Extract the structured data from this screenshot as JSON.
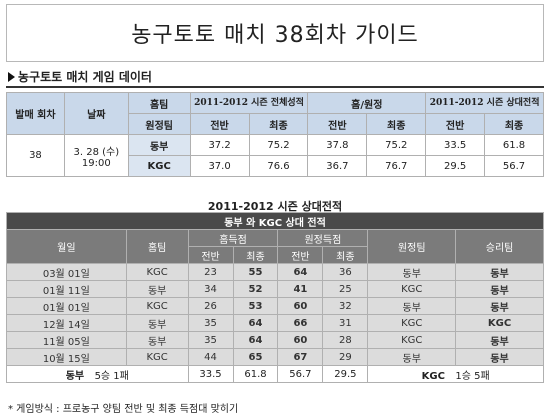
{
  "title": "농구토토 매치 38회차 가이드",
  "section_label": "농구토토 매치 게임 데이터",
  "game_table": {
    "h_round": "발매 회차",
    "h_date": "날짜",
    "h_home": "홈팀",
    "h_away": "원정팀",
    "h_season": "2011-2012 시즌 전체성적",
    "h_homeaway": "홈/원정",
    "h_h2h": "2011-2012 시즌 상대전적",
    "h_first": "전반",
    "h_final": "최종",
    "round": "38",
    "date": "3. 28 (수)",
    "time": "19:00",
    "rows": [
      {
        "team": "동부",
        "s1": "37.2",
        "s2": "75.2",
        "ha1": "37.8",
        "ha2": "75.2",
        "hh1": "33.5",
        "hh2": "61.8"
      },
      {
        "team": "KGC",
        "s1": "37.0",
        "s2": "76.6",
        "ha1": "36.7",
        "ha2": "76.7",
        "hh1": "29.5",
        "hh2": "56.7"
      }
    ]
  },
  "h2h": {
    "subtitle": "2011-2012 시즌 상대전적",
    "banner": "동부 와 KGC 상대 전적",
    "h_date": "월일",
    "h_home": "홈팀",
    "h_home_score": "홈득점",
    "h_away_score": "원정득점",
    "h_away": "원정팀",
    "h_winner": "승리팀",
    "h_first": "전반",
    "h_final": "최종",
    "rows": [
      {
        "date": "03월 01일",
        "home": "KGC",
        "hf": "23",
        "hfin": "55",
        "af": "64",
        "afin": "36",
        "away": "동부",
        "winner": "동부"
      },
      {
        "date": "01월 11일",
        "home": "동부",
        "hf": "34",
        "hfin": "52",
        "af": "41",
        "afin": "25",
        "away": "KGC",
        "winner": "동부"
      },
      {
        "date": "01월 01일",
        "home": "KGC",
        "hf": "26",
        "hfin": "53",
        "af": "60",
        "afin": "32",
        "away": "동부",
        "winner": "동부"
      },
      {
        "date": "12월 14일",
        "home": "동부",
        "hf": "35",
        "hfin": "64",
        "af": "66",
        "afin": "31",
        "away": "KGC",
        "winner": "KGC"
      },
      {
        "date": "11월 05일",
        "home": "동부",
        "hf": "35",
        "hfin": "64",
        "af": "60",
        "afin": "28",
        "away": "KGC",
        "winner": "동부"
      },
      {
        "date": "10월 15일",
        "home": "KGC",
        "hf": "44",
        "hfin": "65",
        "af": "67",
        "afin": "29",
        "away": "동부",
        "winner": "동부"
      }
    ],
    "footer": {
      "team_a": "동부",
      "record_a": "5승 1패",
      "avg1": "33.5",
      "avg2": "61.8",
      "avg3": "56.7",
      "avg4": "29.5",
      "team_b": "KGC",
      "record_b": "1승 5패"
    }
  },
  "note": "* 게임방식 : 프로농구 양팀 전반 및 최종 득점대 맞히기"
}
